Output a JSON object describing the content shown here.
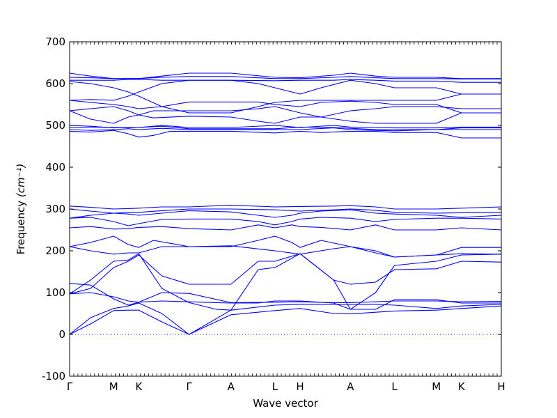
{
  "chart_data": {
    "type": "line",
    "title": "",
    "xlabel": "Wave vector",
    "ylabel": "Frequency ",
    "ylabel_unit": "(cm⁻¹)",
    "ylim": [
      -100,
      700
    ],
    "yticks": [
      -100,
      0,
      100,
      200,
      300,
      400,
      500,
      600,
      700
    ],
    "x_range": [
      0,
      10.3
    ],
    "x_labels": [
      {
        "x": 0.0,
        "label": "Γ"
      },
      {
        "x": 1.05,
        "label": "M"
      },
      {
        "x": 1.65,
        "label": "K"
      },
      {
        "x": 2.85,
        "label": "Γ"
      },
      {
        "x": 3.85,
        "label": "A"
      },
      {
        "x": 4.9,
        "label": "L"
      },
      {
        "x": 5.5,
        "label": "H"
      },
      {
        "x": 6.7,
        "label": "A"
      },
      {
        "x": 7.75,
        "label": "L"
      },
      {
        "x": 8.75,
        "label": "M"
      },
      {
        "x": 9.35,
        "label": "K"
      },
      {
        "x": 10.3,
        "label": "H"
      }
    ],
    "zero_line": {
      "y": 0,
      "style": "dotted"
    },
    "line_color": "#0000ff",
    "series": [
      {
        "x": [
          0,
          0.5,
          1.05,
          1.4,
          1.65,
          2.2,
          2.85,
          3.85,
          4.9,
          5.5,
          6.3,
          6.7,
          7.3,
          7.75,
          8.75,
          9.35,
          10.3
        ],
        "values": [
          0,
          25,
          57,
          58,
          58,
          30,
          0,
          47,
          57,
          62,
          50,
          49,
          53,
          56,
          58,
          62,
          68
        ]
      },
      {
        "x": [
          0,
          0.5,
          1.05,
          1.4,
          1.65,
          2.2,
          2.85,
          3.85,
          4.9,
          5.5,
          6.3,
          6.7,
          7.3,
          7.75,
          8.75,
          9.35,
          10.3
        ],
        "values": [
          0,
          40,
          62,
          68,
          75,
          50,
          0,
          58,
          70,
          72,
          72,
          72,
          72,
          70,
          62,
          68,
          72
        ]
      },
      {
        "x": [
          0,
          0.5,
          1.05,
          1.4,
          1.65,
          2.2,
          2.85,
          3.5,
          3.85,
          4.5,
          4.9,
          5.5,
          6.3,
          6.7,
          7.3,
          7.75,
          8.75,
          9.35,
          10.3
        ],
        "values": [
          97,
          100,
          90,
          80,
          77,
          80,
          78,
          76,
          75,
          75,
          80,
          80,
          75,
          60,
          60,
          83,
          83,
          75,
          75
        ]
      },
      {
        "x": [
          0,
          0.5,
          1.05,
          1.4,
          1.65,
          2.2,
          2.85,
          3.85,
          4.9,
          5.5,
          6.3,
          6.7,
          7.3,
          7.75,
          8.75,
          9.35,
          10.3
        ],
        "values": [
          122,
          118,
          85,
          70,
          77,
          100,
          98,
          76,
          77,
          78,
          76,
          76,
          78,
          80,
          80,
          78,
          79
        ]
      },
      {
        "x": [
          0,
          0.5,
          1.05,
          1.4,
          1.65,
          2.2,
          2.85,
          3.5,
          3.85,
          4.5,
          4.9,
          5.5,
          6.3,
          6.7,
          7.3,
          7.75,
          8.75,
          9.35,
          10.3
        ],
        "values": [
          97,
          110,
          160,
          175,
          190,
          140,
          120,
          120,
          120,
          175,
          175,
          193,
          130,
          120,
          125,
          155,
          157,
          175,
          173
        ]
      },
      {
        "x": [
          0,
          0.5,
          1.05,
          1.4,
          1.65,
          2.2,
          2.85,
          3.5,
          3.85,
          4.5,
          4.9,
          5.5,
          6.3,
          6.7,
          7.3,
          7.75,
          8.75,
          9.35,
          10.3
        ],
        "values": [
          97,
          130,
          175,
          178,
          193,
          110,
          76,
          60,
          58,
          155,
          160,
          193,
          130,
          60,
          100,
          165,
          175,
          190,
          192
        ]
      },
      {
        "x": [
          0,
          0.5,
          1.05,
          1.4,
          1.65,
          2.0,
          2.85,
          3.85,
          4.5,
          4.9,
          5.3,
          5.5,
          6.0,
          6.7,
          7.3,
          7.75,
          8.75,
          9.35,
          10.3
        ],
        "values": [
          210,
          220,
          235,
          215,
          208,
          225,
          210,
          210,
          225,
          235,
          220,
          208,
          225,
          210,
          195,
          185,
          190,
          193,
          192
        ]
      },
      {
        "x": [
          0,
          0.5,
          1.05,
          1.4,
          1.65,
          2.2,
          2.85,
          3.85,
          4.9,
          5.5,
          6.3,
          6.7,
          7.3,
          7.75,
          8.75,
          9.35,
          10.3
        ],
        "values": [
          210,
          200,
          192,
          195,
          195,
          210,
          210,
          212,
          200,
          192,
          205,
          210,
          200,
          185,
          190,
          208,
          208
        ]
      },
      {
        "x": [
          0,
          0.5,
          1.05,
          1.4,
          1.65,
          2.2,
          2.85,
          3.85,
          4.5,
          4.9,
          5.3,
          5.5,
          6.0,
          6.7,
          7.3,
          7.75,
          8.75,
          9.35,
          10.3
        ],
        "values": [
          255,
          258,
          252,
          253,
          256,
          258,
          253,
          250,
          262,
          255,
          262,
          258,
          256,
          250,
          262,
          250,
          250,
          255,
          250
        ]
      },
      {
        "x": [
          0,
          0.5,
          1.05,
          1.4,
          1.65,
          2.2,
          2.85,
          3.85,
          4.5,
          4.9,
          5.3,
          5.5,
          6.0,
          6.7,
          7.3,
          7.75,
          8.75,
          9.35,
          10.3
        ],
        "values": [
          278,
          280,
          270,
          260,
          265,
          275,
          276,
          276,
          270,
          262,
          270,
          276,
          280,
          278,
          270,
          275,
          278,
          278,
          276
        ]
      },
      {
        "x": [
          0,
          0.5,
          1.05,
          1.4,
          1.65,
          2.2,
          2.85,
          3.85,
          4.5,
          4.9,
          5.3,
          5.5,
          6.0,
          6.7,
          7.3,
          7.75,
          8.75,
          9.35,
          10.3
        ],
        "values": [
          278,
          285,
          290,
          288,
          285,
          290,
          296,
          293,
          285,
          280,
          285,
          290,
          295,
          298,
          290,
          288,
          285,
          280,
          285
        ]
      },
      {
        "x": [
          0,
          0.5,
          1.05,
          1.4,
          1.65,
          2.2,
          2.85,
          3.85,
          4.9,
          5.5,
          6.3,
          6.7,
          7.3,
          7.75,
          8.75,
          9.35,
          10.3
        ],
        "values": [
          300,
          295,
          290,
          292,
          292,
          296,
          300,
          300,
          298,
          295,
          298,
          300,
          297,
          292,
          290,
          291,
          292
        ]
      },
      {
        "x": [
          0,
          0.5,
          1.05,
          1.4,
          1.65,
          2.2,
          2.85,
          3.85,
          4.9,
          5.5,
          6.3,
          6.7,
          7.3,
          7.75,
          8.75,
          9.35,
          10.3
        ],
        "values": [
          307,
          304,
          300,
          301,
          302,
          305,
          305,
          309,
          305,
          306,
          307,
          308,
          305,
          300,
          300,
          302,
          305
        ]
      },
      {
        "x": [
          0,
          0.5,
          1.05,
          1.4,
          1.65,
          2.0,
          2.4,
          2.85,
          3.85,
          4.9,
          5.5,
          6.0,
          6.7,
          7.3,
          7.75,
          8.75,
          9.35,
          10.3
        ],
        "values": [
          486,
          484,
          488,
          480,
          472,
          476,
          486,
          486,
          486,
          482,
          486,
          483,
          486,
          486,
          483,
          483,
          470,
          470
        ]
      },
      {
        "x": [
          0,
          0.5,
          1.05,
          1.4,
          1.65,
          2.2,
          2.85,
          3.85,
          4.9,
          5.5,
          6.3,
          6.7,
          7.3,
          7.75,
          8.75,
          9.35,
          10.3
        ],
        "values": [
          490,
          488,
          490,
          492,
          490,
          493,
          490,
          490,
          490,
          490,
          494,
          490,
          488,
          487,
          490,
          490,
          490
        ]
      },
      {
        "x": [
          0,
          0.5,
          1.05,
          1.4,
          1.65,
          2.2,
          2.85,
          3.85,
          4.9,
          5.5,
          6.3,
          6.7,
          7.3,
          7.75,
          8.75,
          9.35,
          10.3
        ],
        "values": [
          495,
          496,
          495,
          494,
          495,
          498,
          492,
          492,
          492,
          496,
          495,
          493,
          490,
          490,
          490,
          494,
          494
        ]
      },
      {
        "x": [
          0,
          0.5,
          1.05,
          1.4,
          1.65,
          2.2,
          2.85,
          3.85,
          4.9,
          5.5,
          6.3,
          6.7,
          7.3,
          7.75,
          8.75,
          9.35,
          10.3
        ],
        "values": [
          500,
          498,
          494,
          495,
          495,
          500,
          495,
          495,
          500,
          495,
          500,
          496,
          495,
          494,
          494,
          496,
          496
        ]
      },
      {
        "x": [
          0,
          0.5,
          1.05,
          1.4,
          1.65,
          2.0,
          2.85,
          3.85,
          4.5,
          4.9,
          5.5,
          6.0,
          6.7,
          7.3,
          7.75,
          8.75,
          9.35,
          10.3
        ],
        "values": [
          535,
          515,
          505,
          520,
          525,
          518,
          522,
          520,
          510,
          505,
          520,
          520,
          510,
          505,
          505,
          505,
          530,
          530
        ]
      },
      {
        "x": [
          0,
          0.5,
          1.05,
          1.4,
          1.65,
          2.0,
          2.85,
          3.85,
          4.5,
          4.9,
          5.5,
          6.0,
          6.7,
          7.3,
          7.75,
          8.75,
          9.35,
          10.3
        ],
        "values": [
          535,
          540,
          545,
          535,
          525,
          535,
          535,
          535,
          540,
          545,
          530,
          520,
          535,
          540,
          545,
          545,
          540,
          540
        ]
      },
      {
        "x": [
          0,
          0.5,
          1.05,
          1.4,
          1.65,
          2.2,
          2.85,
          3.85,
          4.5,
          4.9,
          5.5,
          6.0,
          6.7,
          7.3,
          7.75,
          8.75,
          9.35,
          10.3
        ],
        "values": [
          560,
          555,
          550,
          545,
          540,
          545,
          556,
          556,
          556,
          550,
          545,
          555,
          558,
          555,
          550,
          550,
          530,
          530
        ]
      },
      {
        "x": [
          0,
          0.5,
          1.05,
          1.4,
          1.65,
          2.2,
          2.85,
          3.85,
          4.5,
          4.9,
          5.5,
          6.0,
          6.7,
          7.3,
          7.75,
          8.75,
          9.35,
          10.3
        ],
        "values": [
          560,
          562,
          560,
          570,
          580,
          600,
          608,
          608,
          600,
          590,
          575,
          590,
          608,
          600,
          590,
          590,
          575,
          575
        ]
      },
      {
        "x": [
          0,
          0.5,
          1.05,
          1.4,
          1.65,
          2.2,
          2.85,
          3.85,
          4.5,
          4.9,
          5.5,
          6.0,
          6.7,
          7.3,
          7.75,
          8.75,
          9.35,
          10.3
        ],
        "values": [
          605,
          600,
          590,
          580,
          570,
          545,
          530,
          530,
          545,
          555,
          560,
          560,
          560,
          560,
          560,
          560,
          575,
          575
        ]
      },
      {
        "x": [
          0,
          0.5,
          1.05,
          1.4,
          1.65,
          2.2,
          2.85,
          3.85,
          4.9,
          5.5,
          6.3,
          6.7,
          7.3,
          7.75,
          8.75,
          9.35,
          10.3
        ],
        "values": [
          608,
          608,
          608,
          610,
          610,
          608,
          608,
          608,
          607,
          608,
          608,
          610,
          608,
          606,
          606,
          603,
          603
        ]
      },
      {
        "x": [
          0,
          0.5,
          1.05,
          1.4,
          1.65,
          2.2,
          2.85,
          3.85,
          4.9,
          5.5,
          6.3,
          6.7,
          7.3,
          7.75,
          8.75,
          9.35,
          10.3
        ],
        "values": [
          615,
          614,
          612,
          612,
          612,
          615,
          617,
          617,
          612,
          612,
          615,
          617,
          614,
          612,
          612,
          611,
          611
        ]
      },
      {
        "x": [
          0,
          0.5,
          1.05,
          1.4,
          1.65,
          2.2,
          2.85,
          3.85,
          4.9,
          5.5,
          6.3,
          6.7,
          7.3,
          7.75,
          8.75,
          9.35,
          10.3
        ],
        "values": [
          625,
          618,
          612,
          612,
          612,
          618,
          625,
          625,
          615,
          614,
          620,
          625,
          618,
          615,
          615,
          612,
          612
        ]
      }
    ]
  }
}
